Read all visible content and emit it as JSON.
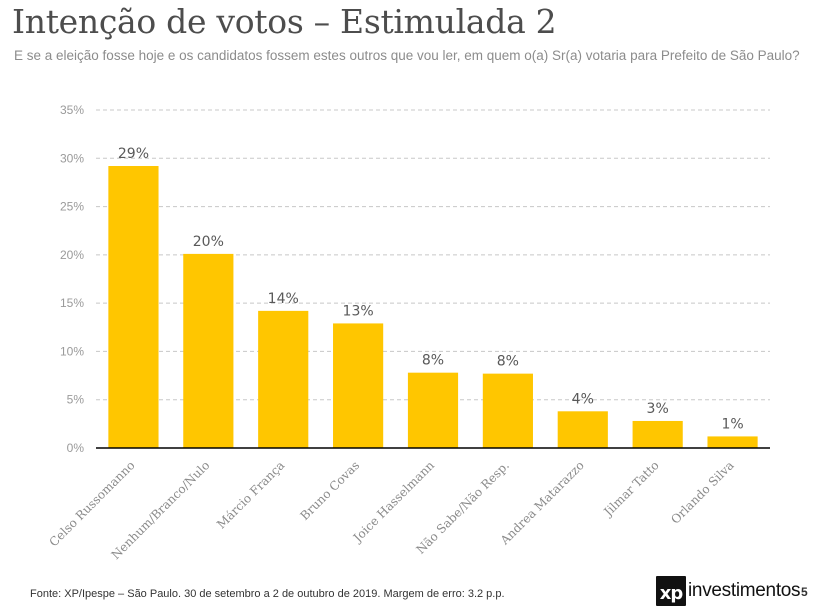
{
  "slide": {
    "title": "Intenção de votos – Estimulada 2",
    "subtitle": "E se a eleição fosse hoje e os candidatos fossem estes outros que vou ler, em quem o(a) Sr(a) votaria para Prefeito de São Paulo?",
    "footer": "Fonte: XP/Ipespe – São Paulo. 30 de setembro a 2 de outubro de 2019. Margem de erro: 3.2 p.p.",
    "logo": {
      "mark": "xp",
      "text": "investimentos"
    },
    "page_number": "5"
  },
  "colors": {
    "bar": "#FFC600",
    "gridline": "#c8c8c8",
    "axis": "#000000"
  },
  "chart_data": {
    "type": "bar",
    "title": "Intenção de votos – Estimulada 2",
    "xlabel": "",
    "ylabel": "",
    "categories": [
      "Celso Russomanno",
      "Nenhum/Branco/Nulo",
      "Márcio França",
      "Bruno Covas",
      "Joice Hasselmann",
      "Não Sabe/Não Resp.",
      "Andrea Matarazzo",
      "Jilmar Tatto",
      "Orlando Silva"
    ],
    "values": [
      29.2,
      20.1,
      14.2,
      12.9,
      7.8,
      7.7,
      3.8,
      2.8,
      1.2
    ],
    "data_labels": [
      "29%",
      "20%",
      "14%",
      "13%",
      "8%",
      "8%",
      "4%",
      "3%",
      "1%"
    ],
    "ylim": [
      0,
      35
    ],
    "yticks": [
      0,
      5,
      10,
      15,
      20,
      25,
      30,
      35
    ],
    "ytick_labels": [
      "0%",
      "5%",
      "10%",
      "15%",
      "20%",
      "25%",
      "30%",
      "35%"
    ],
    "grid": true,
    "grid_style": "dashed",
    "legend": "none",
    "x_label_rotation_deg": -45
  }
}
